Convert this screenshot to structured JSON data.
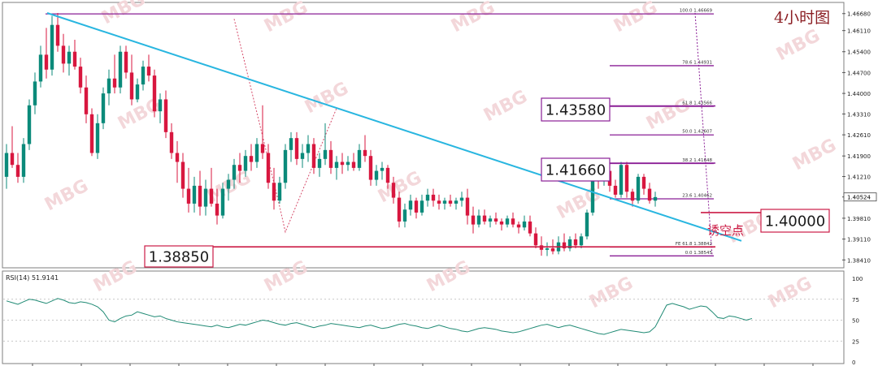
{
  "chart_data": [
    {
      "type": "candlestick",
      "title": "4小时图",
      "watermark": "MBG",
      "ylim": [
        1.382,
        1.47
      ],
      "y_ticks": [
        "1.46680",
        "1.46110",
        "1.45400",
        "1.44700",
        "1.44000",
        "1.43310",
        "1.42610",
        "1.41900",
        "1.41210",
        "1.40524",
        "1.39810",
        "1.39110",
        "1.38410"
      ],
      "current_price": "1.40524",
      "colors": {
        "up": "#0b8a7a",
        "down": "#d8173f",
        "trendline": "#29b6e0",
        "fib": "#8a1f96",
        "key": "#cc1c46"
      },
      "candles": [
        [
          1.412,
          1.423,
          1.408,
          1.42
        ],
        [
          1.42,
          1.429,
          1.415,
          1.416
        ],
        [
          1.416,
          1.42,
          1.41,
          1.412
        ],
        [
          1.412,
          1.425,
          1.41,
          1.423
        ],
        [
          1.423,
          1.438,
          1.421,
          1.436
        ],
        [
          1.436,
          1.447,
          1.433,
          1.444
        ],
        [
          1.444,
          1.456,
          1.442,
          1.453
        ],
        [
          1.453,
          1.462,
          1.445,
          1.448
        ],
        [
          1.448,
          1.466,
          1.446,
          1.463
        ],
        [
          1.463,
          1.467,
          1.454,
          1.456
        ],
        [
          1.456,
          1.46,
          1.447,
          1.45
        ],
        [
          1.45,
          1.456,
          1.446,
          1.454
        ],
        [
          1.454,
          1.458,
          1.448,
          1.449
        ],
        [
          1.449,
          1.452,
          1.44,
          1.442
        ],
        [
          1.442,
          1.446,
          1.43,
          1.433
        ],
        [
          1.433,
          1.435,
          1.419,
          1.42
        ],
        [
          1.42,
          1.433,
          1.418,
          1.43
        ],
        [
          1.43,
          1.442,
          1.428,
          1.44
        ],
        [
          1.44,
          1.448,
          1.436,
          1.445
        ],
        [
          1.445,
          1.453,
          1.44,
          1.442
        ],
        [
          1.442,
          1.456,
          1.44,
          1.454
        ],
        [
          1.454,
          1.456,
          1.445,
          1.447
        ],
        [
          1.447,
          1.453,
          1.436,
          1.438
        ],
        [
          1.438,
          1.445,
          1.437,
          1.443
        ],
        [
          1.443,
          1.451,
          1.441,
          1.449
        ],
        [
          1.449,
          1.453,
          1.444,
          1.446
        ],
        [
          1.446,
          1.448,
          1.432,
          1.434
        ],
        [
          1.434,
          1.44,
          1.43,
          1.438
        ],
        [
          1.438,
          1.441,
          1.425,
          1.427
        ],
        [
          1.427,
          1.43,
          1.418,
          1.42
        ],
        [
          1.42,
          1.424,
          1.41,
          1.417
        ],
        [
          1.417,
          1.42,
          1.405,
          1.408
        ],
        [
          1.408,
          1.415,
          1.4,
          1.403
        ],
        [
          1.403,
          1.412,
          1.4,
          1.409
        ],
        [
          1.409,
          1.414,
          1.399,
          1.402
        ],
        [
          1.402,
          1.411,
          1.399,
          1.408
        ],
        [
          1.408,
          1.415,
          1.402,
          1.403
        ],
        [
          1.403,
          1.408,
          1.396,
          1.399
        ],
        [
          1.399,
          1.41,
          1.398,
          1.408
        ],
        [
          1.408,
          1.413,
          1.404,
          1.411
        ],
        [
          1.411,
          1.418,
          1.408,
          1.416
        ],
        [
          1.416,
          1.42,
          1.41,
          1.414
        ],
        [
          1.414,
          1.421,
          1.412,
          1.419
        ],
        [
          1.419,
          1.423,
          1.414,
          1.417
        ],
        [
          1.417,
          1.425,
          1.415,
          1.423
        ],
        [
          1.423,
          1.436,
          1.418,
          1.42
        ],
        [
          1.42,
          1.423,
          1.408,
          1.41
        ],
        [
          1.41,
          1.415,
          1.401,
          1.404
        ],
        [
          1.404,
          1.412,
          1.403,
          1.41
        ],
        [
          1.41,
          1.423,
          1.408,
          1.421
        ],
        [
          1.421,
          1.427,
          1.417,
          1.425
        ],
        [
          1.425,
          1.427,
          1.416,
          1.418
        ],
        [
          1.418,
          1.423,
          1.415,
          1.42
        ],
        [
          1.42,
          1.426,
          1.417,
          1.423
        ],
        [
          1.423,
          1.425,
          1.413,
          1.415
        ],
        [
          1.415,
          1.42,
          1.412,
          1.418
        ],
        [
          1.418,
          1.43,
          1.416,
          1.421
        ],
        [
          1.421,
          1.424,
          1.413,
          1.415
        ],
        [
          1.415,
          1.419,
          1.411,
          1.417
        ],
        [
          1.417,
          1.42,
          1.413,
          1.416
        ],
        [
          1.416,
          1.419,
          1.414,
          1.417
        ],
        [
          1.417,
          1.42,
          1.414,
          1.415
        ],
        [
          1.415,
          1.423,
          1.414,
          1.421
        ],
        [
          1.421,
          1.426,
          1.417,
          1.419
        ],
        [
          1.419,
          1.421,
          1.409,
          1.411
        ],
        [
          1.411,
          1.416,
          1.409,
          1.414
        ],
        [
          1.414,
          1.417,
          1.411,
          1.415
        ],
        [
          1.415,
          1.416,
          1.408,
          1.41
        ],
        [
          1.41,
          1.412,
          1.403,
          1.405
        ],
        [
          1.405,
          1.407,
          1.395,
          1.397
        ],
        [
          1.397,
          1.403,
          1.395,
          1.401
        ],
        [
          1.401,
          1.406,
          1.399,
          1.404
        ],
        [
          1.404,
          1.405,
          1.398,
          1.4
        ],
        [
          1.4,
          1.406,
          1.399,
          1.404
        ],
        [
          1.404,
          1.408,
          1.402,
          1.406
        ],
        [
          1.406,
          1.408,
          1.402,
          1.404
        ],
        [
          1.404,
          1.406,
          1.401,
          1.403
        ],
        [
          1.403,
          1.405,
          1.401,
          1.404
        ],
        [
          1.404,
          1.406,
          1.402,
          1.403
        ],
        [
          1.403,
          1.405,
          1.401,
          1.404
        ],
        [
          1.404,
          1.407,
          1.402,
          1.405
        ],
        [
          1.405,
          1.408,
          1.396,
          1.399
        ],
        [
          1.399,
          1.402,
          1.393,
          1.396
        ],
        [
          1.396,
          1.401,
          1.395,
          1.399
        ],
        [
          1.399,
          1.401,
          1.396,
          1.397
        ],
        [
          1.397,
          1.399,
          1.395,
          1.398
        ],
        [
          1.398,
          1.4,
          1.396,
          1.397
        ],
        [
          1.397,
          1.398,
          1.394,
          1.396
        ],
        [
          1.396,
          1.399,
          1.395,
          1.398
        ],
        [
          1.398,
          1.4,
          1.395,
          1.396
        ],
        [
          1.396,
          1.397,
          1.393,
          1.395
        ],
        [
          1.395,
          1.399,
          1.394,
          1.397
        ],
        [
          1.397,
          1.399,
          1.392,
          1.393
        ],
        [
          1.393,
          1.395,
          1.388,
          1.389
        ],
        [
          1.389,
          1.392,
          1.3855,
          1.3875
        ],
        [
          1.3875,
          1.39,
          1.3854,
          1.388
        ],
        [
          1.388,
          1.391,
          1.386,
          1.387
        ],
        [
          1.387,
          1.392,
          1.386,
          1.39
        ],
        [
          1.39,
          1.393,
          1.387,
          1.388
        ],
        [
          1.388,
          1.392,
          1.387,
          1.391
        ],
        [
          1.391,
          1.393,
          1.388,
          1.389
        ],
        [
          1.389,
          1.393,
          1.388,
          1.392
        ],
        [
          1.392,
          1.401,
          1.391,
          1.4
        ],
        [
          1.4,
          1.414,
          1.399,
          1.413
        ],
        [
          1.413,
          1.416,
          1.408,
          1.412
        ],
        [
          1.412,
          1.415,
          1.409,
          1.414
        ],
        [
          1.414,
          1.416,
          1.407,
          1.409
        ],
        [
          1.409,
          1.411,
          1.405,
          1.406
        ],
        [
          1.406,
          1.417,
          1.405,
          1.416
        ],
        [
          1.416,
          1.417,
          1.405,
          1.407
        ],
        [
          1.407,
          1.408,
          1.402,
          1.404
        ],
        [
          1.404,
          1.413,
          1.403,
          1.412
        ],
        [
          1.412,
          1.413,
          1.406,
          1.408
        ],
        [
          1.408,
          1.41,
          1.403,
          1.404
        ],
        [
          1.404,
          1.407,
          1.402,
          1.4052
        ]
      ],
      "trendline": [
        [
          0,
          1.467
        ],
        [
          135,
          1.3905
        ]
      ],
      "wave_left": [
        [
          40,
          1.465
        ],
        [
          48,
          1.402
        ],
        [
          49,
          1.3935
        ],
        [
          58,
          1.435
        ]
      ],
      "wave_right": [
        [
          121,
          1.467
        ],
        [
          124,
          1.3855
        ]
      ],
      "fib_levels": [
        {
          "label": "100.0",
          "value": "1.46669",
          "price": 1.46669
        },
        {
          "label": "78.6",
          "value": "1.44931",
          "price": 1.44931
        },
        {
          "label": "61.8",
          "value": "1.43566",
          "price": 1.43566
        },
        {
          "label": "50.0",
          "value": "1.42607",
          "price": 1.42607
        },
        {
          "label": "38.2",
          "value": "1.41648",
          "price": 1.41648
        },
        {
          "label": "23.6",
          "value": "1.40462",
          "price": 1.40462
        },
        {
          "label": "FE 61.8",
          "value": "1.38842",
          "price": 1.38842
        },
        {
          "label": "0.0",
          "value": "1.38545",
          "price": 1.38545
        }
      ],
      "key_levels": [
        {
          "value": "1.43580",
          "price": 1.4358
        },
        {
          "value": "1.41660",
          "price": 1.4166
        },
        {
          "value": "1.38850",
          "price": 1.3885
        },
        {
          "value": "1.40000",
          "price": 1.4
        }
      ],
      "annotation": "诱空点"
    },
    {
      "type": "line",
      "title": "RSI(14) 51.9141",
      "ylim": [
        0,
        100
      ],
      "y_ticks": [
        "100",
        "75",
        "50",
        "25",
        "0"
      ],
      "guide_levels": [
        75,
        50,
        25
      ],
      "values": [
        73,
        71,
        69,
        72,
        75,
        74,
        72,
        70,
        73,
        76,
        74,
        71,
        70,
        72,
        71,
        69,
        66,
        60,
        50,
        48,
        52,
        55,
        56,
        60,
        58,
        56,
        54,
        55,
        52,
        50,
        48,
        47,
        46,
        45,
        44,
        43,
        42,
        44,
        42,
        41,
        43,
        45,
        44,
        46,
        48,
        50,
        49,
        47,
        45,
        44,
        46,
        47,
        45,
        43,
        41,
        43,
        44,
        46,
        45,
        44,
        43,
        42,
        41,
        43,
        44,
        42,
        40,
        41,
        43,
        45,
        46,
        44,
        43,
        41,
        40,
        42,
        44,
        42,
        40,
        39,
        37,
        36,
        38,
        40,
        41,
        40,
        39,
        37,
        36,
        35,
        36,
        38,
        40,
        42,
        44,
        45,
        43,
        41,
        43,
        44,
        42,
        40,
        38,
        36,
        34,
        33,
        35,
        37,
        39,
        38,
        37,
        36,
        35,
        36,
        42,
        55,
        68,
        70,
        68,
        66,
        63,
        65,
        67,
        66,
        60,
        53,
        52,
        55,
        54,
        52,
        50,
        52
      ]
    }
  ]
}
